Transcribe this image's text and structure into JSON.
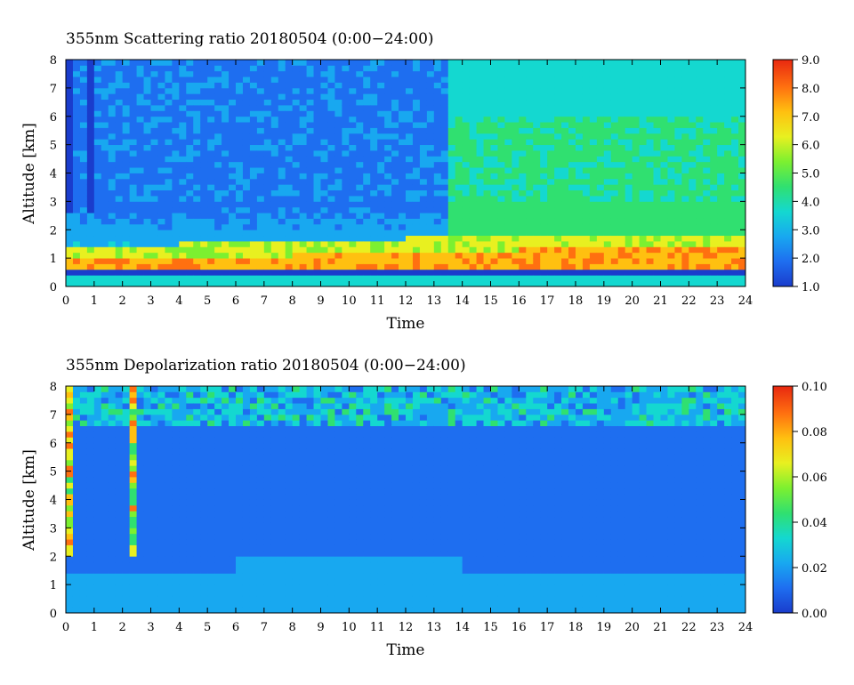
{
  "chart_data": [
    {
      "type": "heatmap",
      "title": "355nm Scattering ratio  20180504 (0:00−24:00)",
      "xlabel": "Time",
      "ylabel": "Altitude [km]",
      "xlim": [
        0,
        24
      ],
      "ylim": [
        0,
        8
      ],
      "x_ticks": [
        "0",
        "1",
        "2",
        "3",
        "4",
        "5",
        "6",
        "7",
        "8",
        "9",
        "10",
        "11",
        "12",
        "13",
        "14",
        "15",
        "16",
        "17",
        "18",
        "19",
        "20",
        "21",
        "22",
        "23",
        "24"
      ],
      "y_ticks": [
        "0",
        "1",
        "2",
        "3",
        "4",
        "5",
        "6",
        "7",
        "8"
      ],
      "colorbar": {
        "range": [
          1.0,
          9.0
        ],
        "ticks": [
          "1.0",
          "2.0",
          "3.0",
          "4.0",
          "5.0",
          "6.0",
          "7.0",
          "8.0",
          "9.0"
        ],
        "colors": [
          "#1a3ccc",
          "#1e6ef0",
          "#18a8f0",
          "#14d8d0",
          "#30e070",
          "#7cf030",
          "#e8f020",
          "#ffc010",
          "#ff7010",
          "#e82810"
        ]
      },
      "features": {
        "boundary_layer_top_km": [
          0.9,
          0.9,
          1.0,
          1.1,
          1.2,
          1.3,
          1.4
        ],
        "free_troposphere_early_value": 2.2,
        "free_troposphere_late_value": 4.2,
        "boundary_layer_value": 7.5,
        "transition_hour": 13.5
      }
    },
    {
      "type": "heatmap",
      "title": "355nm Depolarization ratio  20180504 (0:00−24:00)",
      "xlabel": "Time",
      "ylabel": "Altitude [km]",
      "xlim": [
        0,
        24
      ],
      "ylim": [
        0,
        8
      ],
      "x_ticks": [
        "0",
        "1",
        "2",
        "3",
        "4",
        "5",
        "6",
        "7",
        "8",
        "9",
        "10",
        "11",
        "12",
        "13",
        "14",
        "15",
        "16",
        "17",
        "18",
        "19",
        "20",
        "21",
        "22",
        "23",
        "24"
      ],
      "y_ticks": [
        "0",
        "1",
        "2",
        "3",
        "4",
        "5",
        "6",
        "7",
        "8"
      ],
      "colorbar": {
        "range": [
          0.0,
          0.1
        ],
        "ticks": [
          "0.00",
          "0.02",
          "0.04",
          "0.06",
          "0.08",
          "0.10"
        ],
        "colors": [
          "#1a3ccc",
          "#1e6ef0",
          "#18a8f0",
          "#14d8d0",
          "#30e070",
          "#7cf030",
          "#e8f020",
          "#ffc010",
          "#ff7010",
          "#e82810"
        ]
      },
      "features": {
        "free_troposphere_value": 0.012,
        "lower_layer_value": 0.02,
        "upper_noise_value": 0.04
      }
    }
  ]
}
